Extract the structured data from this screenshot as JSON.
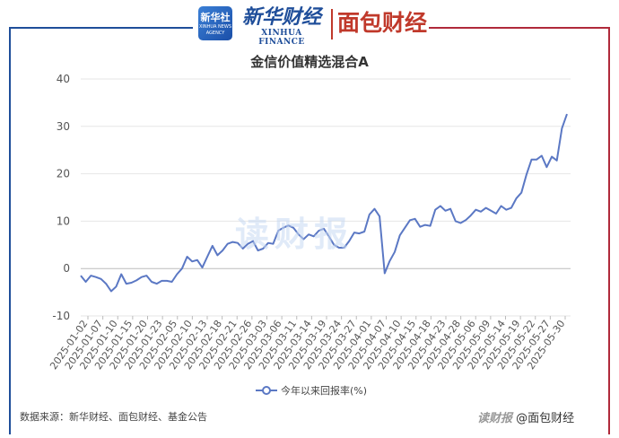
{
  "header": {
    "logo_badge_cn": "新华社",
    "logo_badge_en": "XINHUA NEWS AGENCY",
    "brand_cn": "新华财经",
    "brand_en": "XINHUA FINANCE",
    "partner": "面包财经"
  },
  "watermark": "读财报",
  "footer": {
    "source": "数据来源：新华财经、面包财经、基金公告",
    "credit_prefix": "读财报",
    "credit": "@面包财经"
  },
  "colors": {
    "line": "#5b78c4",
    "frame_left": "#1f4e9a",
    "frame_right": "#b02a3a",
    "grid": "#e6e6e6"
  },
  "chart_data": {
    "type": "line",
    "title": "金信价值精选混合A",
    "ylim": [
      -10,
      40
    ],
    "yticks": [
      -10,
      0,
      10,
      20,
      30,
      40
    ],
    "grid": true,
    "legend_position": "bottom",
    "x_tick_labels": [
      "2025-01-02",
      "2025-01-07",
      "2025-01-10",
      "2025-01-15",
      "2025-01-20",
      "2025-01-23",
      "2025-02-05",
      "2025-02-10",
      "2025-02-13",
      "2025-02-18",
      "2025-02-21",
      "2025-02-26",
      "2025-03-03",
      "2025-03-06",
      "2025-03-11",
      "2025-03-14",
      "2025-03-19",
      "2025-03-24",
      "2025-03-27",
      "2025-04-01",
      "2025-04-07",
      "2025-04-10",
      "2025-04-15",
      "2025-04-18",
      "2025-04-23",
      "2025-04-28",
      "2025-05-06",
      "2025-05-09",
      "2025-05-14",
      "2025-05-19",
      "2025-05-22",
      "2025-05-27",
      "2025-05-30"
    ],
    "series": [
      {
        "name": "今年以来回报率(%)",
        "values": [
          -1.5,
          -2.8,
          -1.5,
          -1.8,
          -2.2,
          -3.2,
          -4.8,
          -3.8,
          -1.2,
          -3.2,
          -3.0,
          -2.5,
          -1.8,
          -1.5,
          -2.8,
          -3.2,
          -2.6,
          -2.6,
          -2.8,
          -1.2,
          0.0,
          2.5,
          1.5,
          1.8,
          0.2,
          2.5,
          4.8,
          2.8,
          3.8,
          5.2,
          5.6,
          5.4,
          4.2,
          5.2,
          5.8,
          3.8,
          4.2,
          5.4,
          5.2,
          8.0,
          8.6,
          9.1,
          8.6,
          7.2,
          6.2,
          7.2,
          6.8,
          8.0,
          8.4,
          6.8,
          5.0,
          4.4,
          4.4,
          5.8,
          7.6,
          7.4,
          7.8,
          11.4,
          12.6,
          11.0,
          -1.0,
          1.6,
          3.5,
          7.0,
          8.6,
          10.2,
          10.5,
          8.8,
          9.2,
          9.0,
          12.4,
          13.2,
          12.2,
          12.6,
          10.0,
          9.6,
          10.2,
          11.2,
          12.4,
          12.0,
          12.8,
          12.2,
          11.6,
          13.2,
          12.4,
          12.8,
          14.8,
          16.0,
          19.8,
          23.0,
          23.0,
          23.8,
          21.4,
          23.6,
          22.8,
          29.6,
          32.6
        ]
      }
    ]
  }
}
